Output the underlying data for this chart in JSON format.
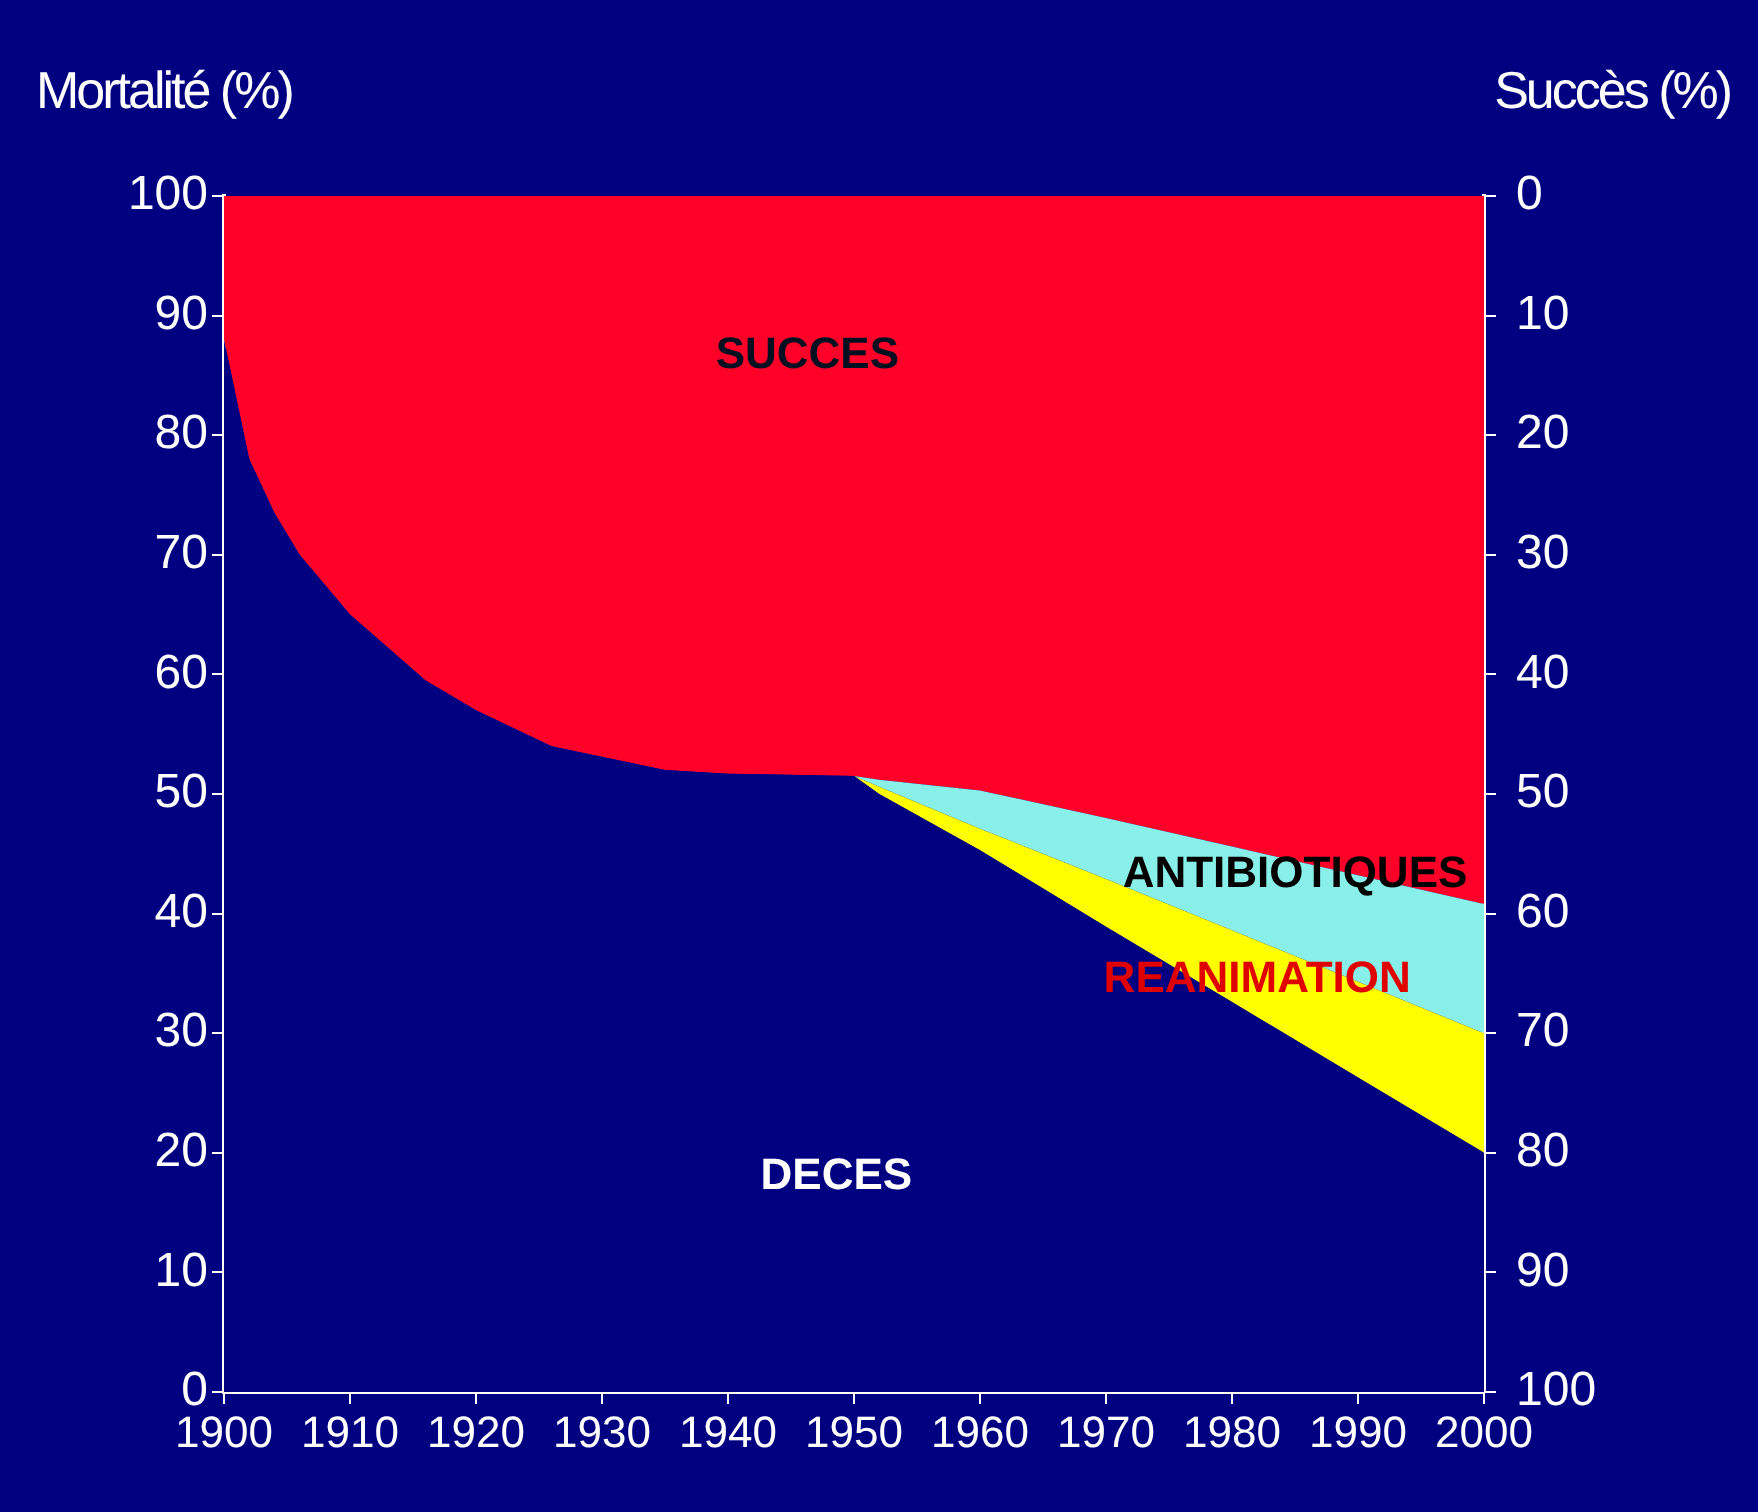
{
  "chart_data": {
    "type": "area",
    "stacked": true,
    "xlabel": null,
    "ylabel": "Mortalité (%)",
    "y2label": "Succès (%)",
    "x": [
      1900,
      1902,
      1904,
      1906,
      1910,
      1916,
      1920,
      1926,
      1935,
      1940,
      1950,
      1952,
      1960,
      1970,
      1980,
      1990,
      2000
    ],
    "series": [
      {
        "name": "DECES",
        "color": "#000080",
        "values": [
          88,
          78,
          73.5,
          70,
          65,
          59.5,
          57,
          54,
          52,
          51.7,
          51.5,
          50,
          45.3,
          38.9,
          32.6,
          26.3,
          20
        ]
      },
      {
        "name": "REANIMATION",
        "color": "#ffff00",
        "values": [
          0,
          0,
          0,
          0,
          0,
          0,
          0,
          0,
          0,
          0,
          0,
          0.6,
          1.8,
          4,
          6,
          8,
          10
        ]
      },
      {
        "name": "ANTIBIOTIQUES",
        "color": "#88f0e8",
        "values": [
          0,
          0,
          0,
          0,
          0,
          0,
          0,
          0,
          0,
          0,
          0,
          0.6,
          3.2,
          5.1,
          7,
          8.9,
          10.8
        ]
      },
      {
        "name": "SUCCES",
        "color": "#ff0028",
        "values": [
          12,
          22,
          26.5,
          30,
          35,
          40.5,
          43,
          46,
          48,
          48.3,
          48.5,
          48.8,
          49.7,
          52,
          54.4,
          56.8,
          59.2
        ]
      }
    ],
    "xlim": [
      1900,
      2000
    ],
    "xticks": [
      1900,
      1910,
      1920,
      1930,
      1940,
      1950,
      1960,
      1970,
      1980,
      1990,
      2000
    ],
    "ylim": [
      0,
      100
    ],
    "yticks": [
      0,
      10,
      20,
      30,
      40,
      50,
      60,
      70,
      80,
      90,
      100
    ],
    "y2lim": [
      100,
      0
    ],
    "y2ticks": [
      0,
      10,
      20,
      30,
      40,
      50,
      60,
      70,
      80,
      90,
      100
    ],
    "grid": false,
    "legend": false,
    "marker": "none"
  }
}
